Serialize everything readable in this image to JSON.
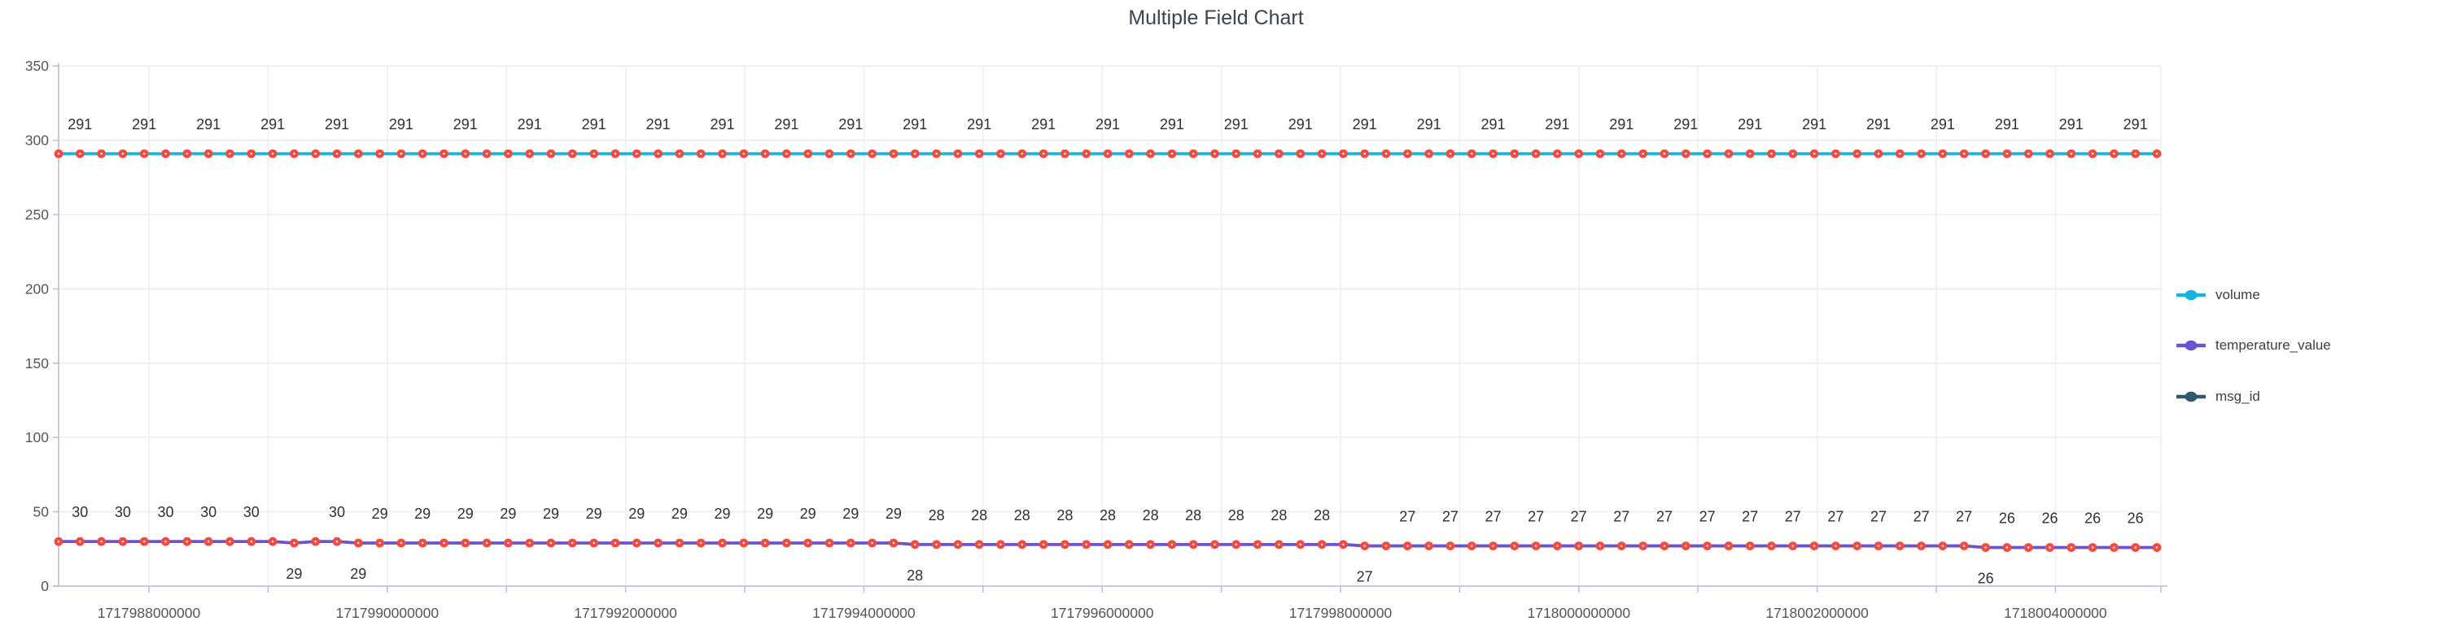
{
  "chart_data": {
    "type": "line",
    "title": "Multiple Field Chart",
    "legend_position": "right",
    "grid": true,
    "x_axis": {
      "kind": "time (epoch ms)",
      "tick_labels": [
        "1717988000000",
        "1717990000000",
        "1717992000000",
        "1717994000000",
        "1717996000000",
        "1717998000000",
        "1718000000000",
        "1718002000000",
        "1718004000000"
      ],
      "minor_tick_interval_ms": 1000000,
      "label_interval_ms": 2000000
    },
    "y_axis": {
      "min": 0,
      "max": 350,
      "tick_step": 50,
      "tick_labels": [
        "0",
        "50",
        "100",
        "150",
        "200",
        "250",
        "300",
        "350"
      ]
    },
    "point_count": 99,
    "x_start_ms": 1717987240000,
    "x_interval_ms": 180000,
    "marker": {
      "shape": "circle",
      "color": "#f04c41",
      "center_dot_color": "#ffffff"
    },
    "series": [
      {
        "name": "volume",
        "color": "#18b3de",
        "values_rle": [
          [
            99,
            291
          ]
        ]
      },
      {
        "name": "temperature_value",
        "color": "#6e52d0",
        "values_rle": [
          [
            11,
            30
          ],
          [
            1,
            29
          ],
          [
            2,
            30
          ],
          [
            26,
            29
          ],
          [
            21,
            28
          ],
          [
            29,
            27
          ],
          [
            9,
            26
          ]
        ]
      },
      {
        "name": "msg_id",
        "color": "#30576f",
        "values_rle": [
          [
            11,
            30
          ],
          [
            1,
            29
          ],
          [
            2,
            30
          ],
          [
            26,
            29
          ],
          [
            21,
            28
          ],
          [
            29,
            27
          ],
          [
            9,
            26
          ]
        ]
      }
    ],
    "label_rules": {
      "volume": {
        "start": 1,
        "every": 3,
        "position": "top"
      },
      "temperature_value": {
        "start": 1,
        "every": 2,
        "position": "top",
        "skip": [
          11,
          61
        ]
      },
      "below_labels": [
        {
          "index": 11,
          "value": "29"
        },
        {
          "index": 14,
          "value": "29"
        },
        {
          "index": 40,
          "value": "28"
        },
        {
          "index": 61,
          "value": "27"
        },
        {
          "index": 90,
          "value": "26"
        }
      ]
    },
    "colors": {
      "grid": "#ededf4",
      "axis": "#ccc9d8",
      "tick": "#c2bfd0",
      "axis_text": "#54545e",
      "data_label_text": "#303034",
      "title_text": "#3d4250"
    }
  }
}
